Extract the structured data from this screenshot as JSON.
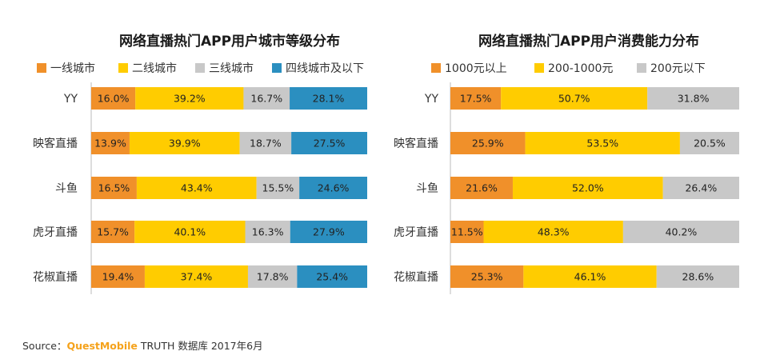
{
  "colors": {
    "tier1": "#f0902a",
    "tier2": "#ffcc00",
    "tier3": "#c8c8c8",
    "tier4": "#2b8fc0",
    "high": "#f0902a",
    "mid": "#ffcc00",
    "low": "#c8c8c8"
  },
  "chart_data": [
    {
      "type": "bar",
      "orientation": "horizontal-stacked-100",
      "title": "网络直播热门APP用户城市等级分布",
      "categories": [
        "YY",
        "映客直播",
        "斗鱼",
        "虎牙直播",
        "花椒直播"
      ],
      "series": [
        {
          "name": "一线城市",
          "values": [
            16.0,
            13.9,
            16.5,
            15.7,
            19.4
          ],
          "labels": [
            "16.0%",
            "13.9%",
            "16.5%",
            "15.7%",
            "19.4%"
          ]
        },
        {
          "name": "二线城市",
          "values": [
            39.2,
            39.9,
            43.4,
            40.1,
            37.4
          ],
          "labels": [
            "39.2%",
            "39.9%",
            "43.4%",
            "40.1%",
            "37.4%"
          ]
        },
        {
          "name": "三线城市",
          "values": [
            16.7,
            18.7,
            15.5,
            16.3,
            17.8
          ],
          "labels": [
            "16.7%",
            "18.7%",
            "15.5%",
            "16.3%",
            "17.8%"
          ]
        },
        {
          "name": "四线城市及以下",
          "values": [
            28.1,
            27.5,
            24.6,
            27.9,
            25.4
          ],
          "labels": [
            "28.1%",
            "27.5%",
            "24.6%",
            "27.9%",
            "25.4%"
          ]
        }
      ],
      "legend": "top",
      "grid": false
    },
    {
      "type": "bar",
      "orientation": "horizontal-stacked-100",
      "title": "网络直播热门APP用户消费能力分布",
      "categories": [
        "YY",
        "映客直播",
        "斗鱼",
        "虎牙直播",
        "花椒直播"
      ],
      "series": [
        {
          "name": "1000元以上",
          "values": [
            17.5,
            25.9,
            21.6,
            11.5,
            25.3
          ],
          "labels": [
            "17.5%",
            "25.9%",
            "21.6%",
            "11.5%",
            "25.3%"
          ]
        },
        {
          "name": "200-1000元",
          "values": [
            50.7,
            53.5,
            52.0,
            48.3,
            46.1
          ],
          "labels": [
            "50.7%",
            "53.5%",
            "52.0%",
            "48.3%",
            "46.1%"
          ]
        },
        {
          "name": "200元以下",
          "values": [
            31.8,
            20.5,
            26.4,
            40.2,
            28.6
          ],
          "labels": [
            "31.8%",
            "20.5%",
            "26.4%",
            "40.2%",
            "28.6%"
          ]
        }
      ],
      "legend": "top",
      "grid": false
    }
  ],
  "footer": {
    "source_prefix": "Source：",
    "brand": "QuestMobile",
    "source_rest": " TRUTH 数据库 2017年6月"
  }
}
